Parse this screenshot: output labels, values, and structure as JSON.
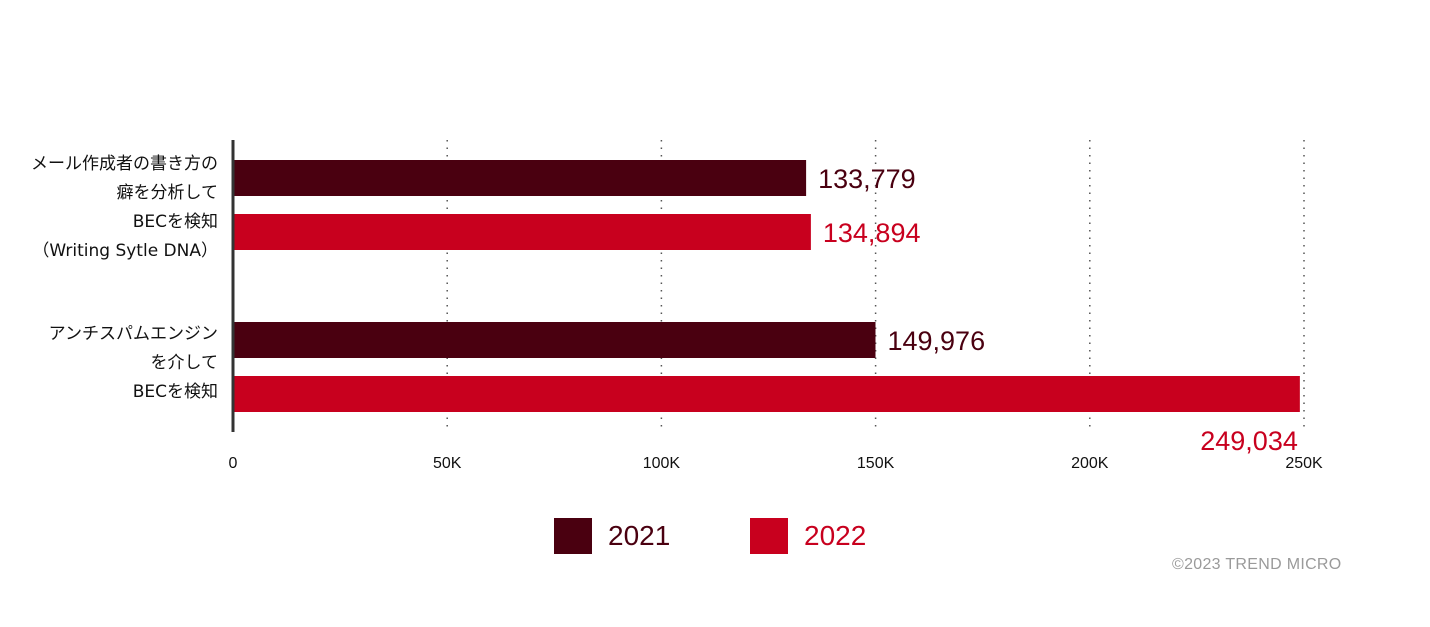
{
  "chart_data": {
    "type": "bar",
    "orientation": "horizontal",
    "categories": [
      "メール作成者の書き方の\n癖を分析して\nBECを検知\n（Writing Sytle DNA）",
      "アンチスパムエンジン\nを介して\nBECを検知"
    ],
    "series": [
      {
        "name": "2021",
        "color": "#4a0010",
        "values": [
          133779,
          149976
        ],
        "labels": [
          "133,779",
          "149,976"
        ]
      },
      {
        "name": "2022",
        "color": "#c8001e",
        "values": [
          134894,
          249034
        ],
        "labels": [
          "134,894",
          "249,034"
        ]
      }
    ],
    "xlim": [
      0,
      250000
    ],
    "xticks": [
      0,
      50000,
      100000,
      150000,
      200000,
      250000
    ],
    "xtick_labels": [
      "0",
      "50K",
      "100K",
      "150K",
      "200K",
      "250K"
    ],
    "grid": "vertical dotted",
    "legend_position": "bottom-center"
  },
  "footer": {
    "copyright": "©2023 TREND MICRO"
  }
}
